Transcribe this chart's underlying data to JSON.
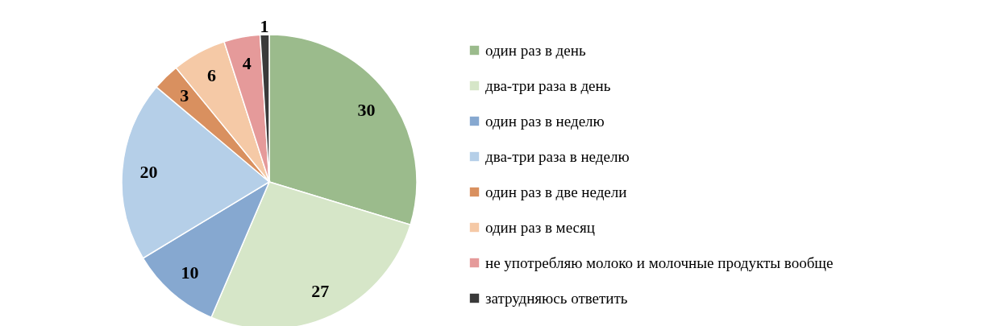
{
  "chart_data": {
    "type": "pie",
    "categories": [
      "один раз в день",
      "два-три раза в день",
      "один раз в неделю",
      "два-три раза в неделю",
      "один раз в две недели",
      "один раз в месяц",
      "не употребляю молоко и молочные продукты вообще",
      "затрудняюсь ответить"
    ],
    "values": [
      30,
      27,
      10,
      20,
      3,
      6,
      4,
      1
    ],
    "colors": [
      "#9bbb8c",
      "#d6e6c8",
      "#86a8d0",
      "#b5cfe8",
      "#d9905f",
      "#f5c9a6",
      "#e59a9a",
      "#3a3a3a"
    ],
    "data_labels": true,
    "legend": "right"
  }
}
